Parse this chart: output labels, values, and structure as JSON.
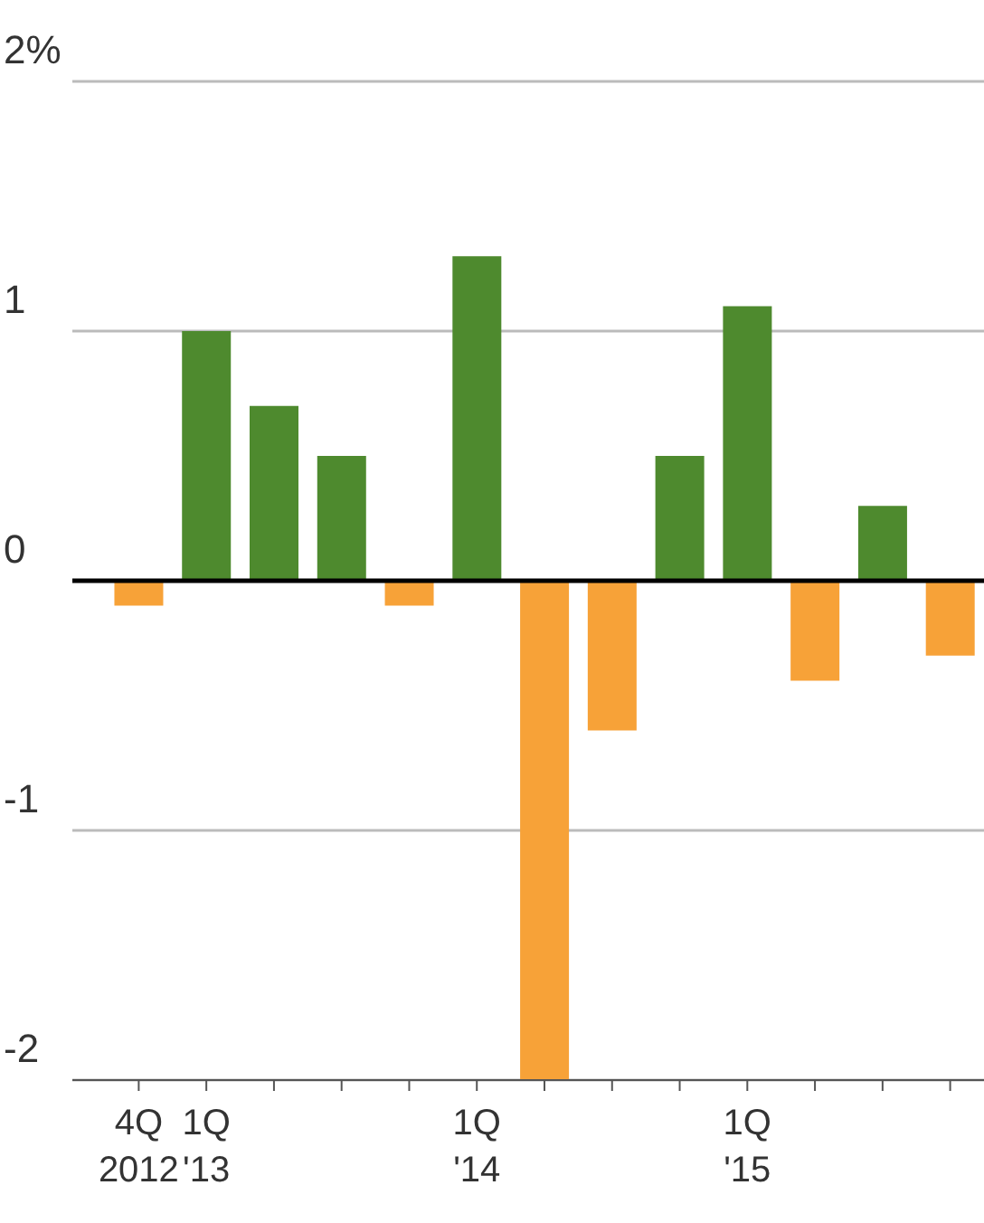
{
  "chart_data": {
    "type": "bar",
    "categories": [
      "4Q\n2012",
      "1Q\n'13",
      null,
      null,
      null,
      "1Q\n'14",
      null,
      null,
      null,
      "1Q\n'15",
      null,
      null,
      null
    ],
    "values": [
      -0.1,
      1.0,
      0.7,
      0.5,
      -0.1,
      1.3,
      -2.0,
      -0.6,
      0.5,
      1.1,
      -0.4,
      0.3,
      -0.3
    ],
    "colors": [
      "#f7a238",
      "#4e8a2e",
      "#4e8a2e",
      "#4e8a2e",
      "#f7a238",
      "#4e8a2e",
      "#f7a238",
      "#f7a238",
      "#4e8a2e",
      "#4e8a2e",
      "#f7a238",
      "#4e8a2e",
      "#f7a238"
    ],
    "ylim": [
      -2,
      2
    ],
    "yticks": [
      {
        "value": 2,
        "label": "2%"
      },
      1,
      0,
      -1,
      -2
    ],
    "grid": "y",
    "ref_lines": [
      {
        "axis": "y",
        "value": 0,
        "color": "#000000"
      }
    ]
  }
}
